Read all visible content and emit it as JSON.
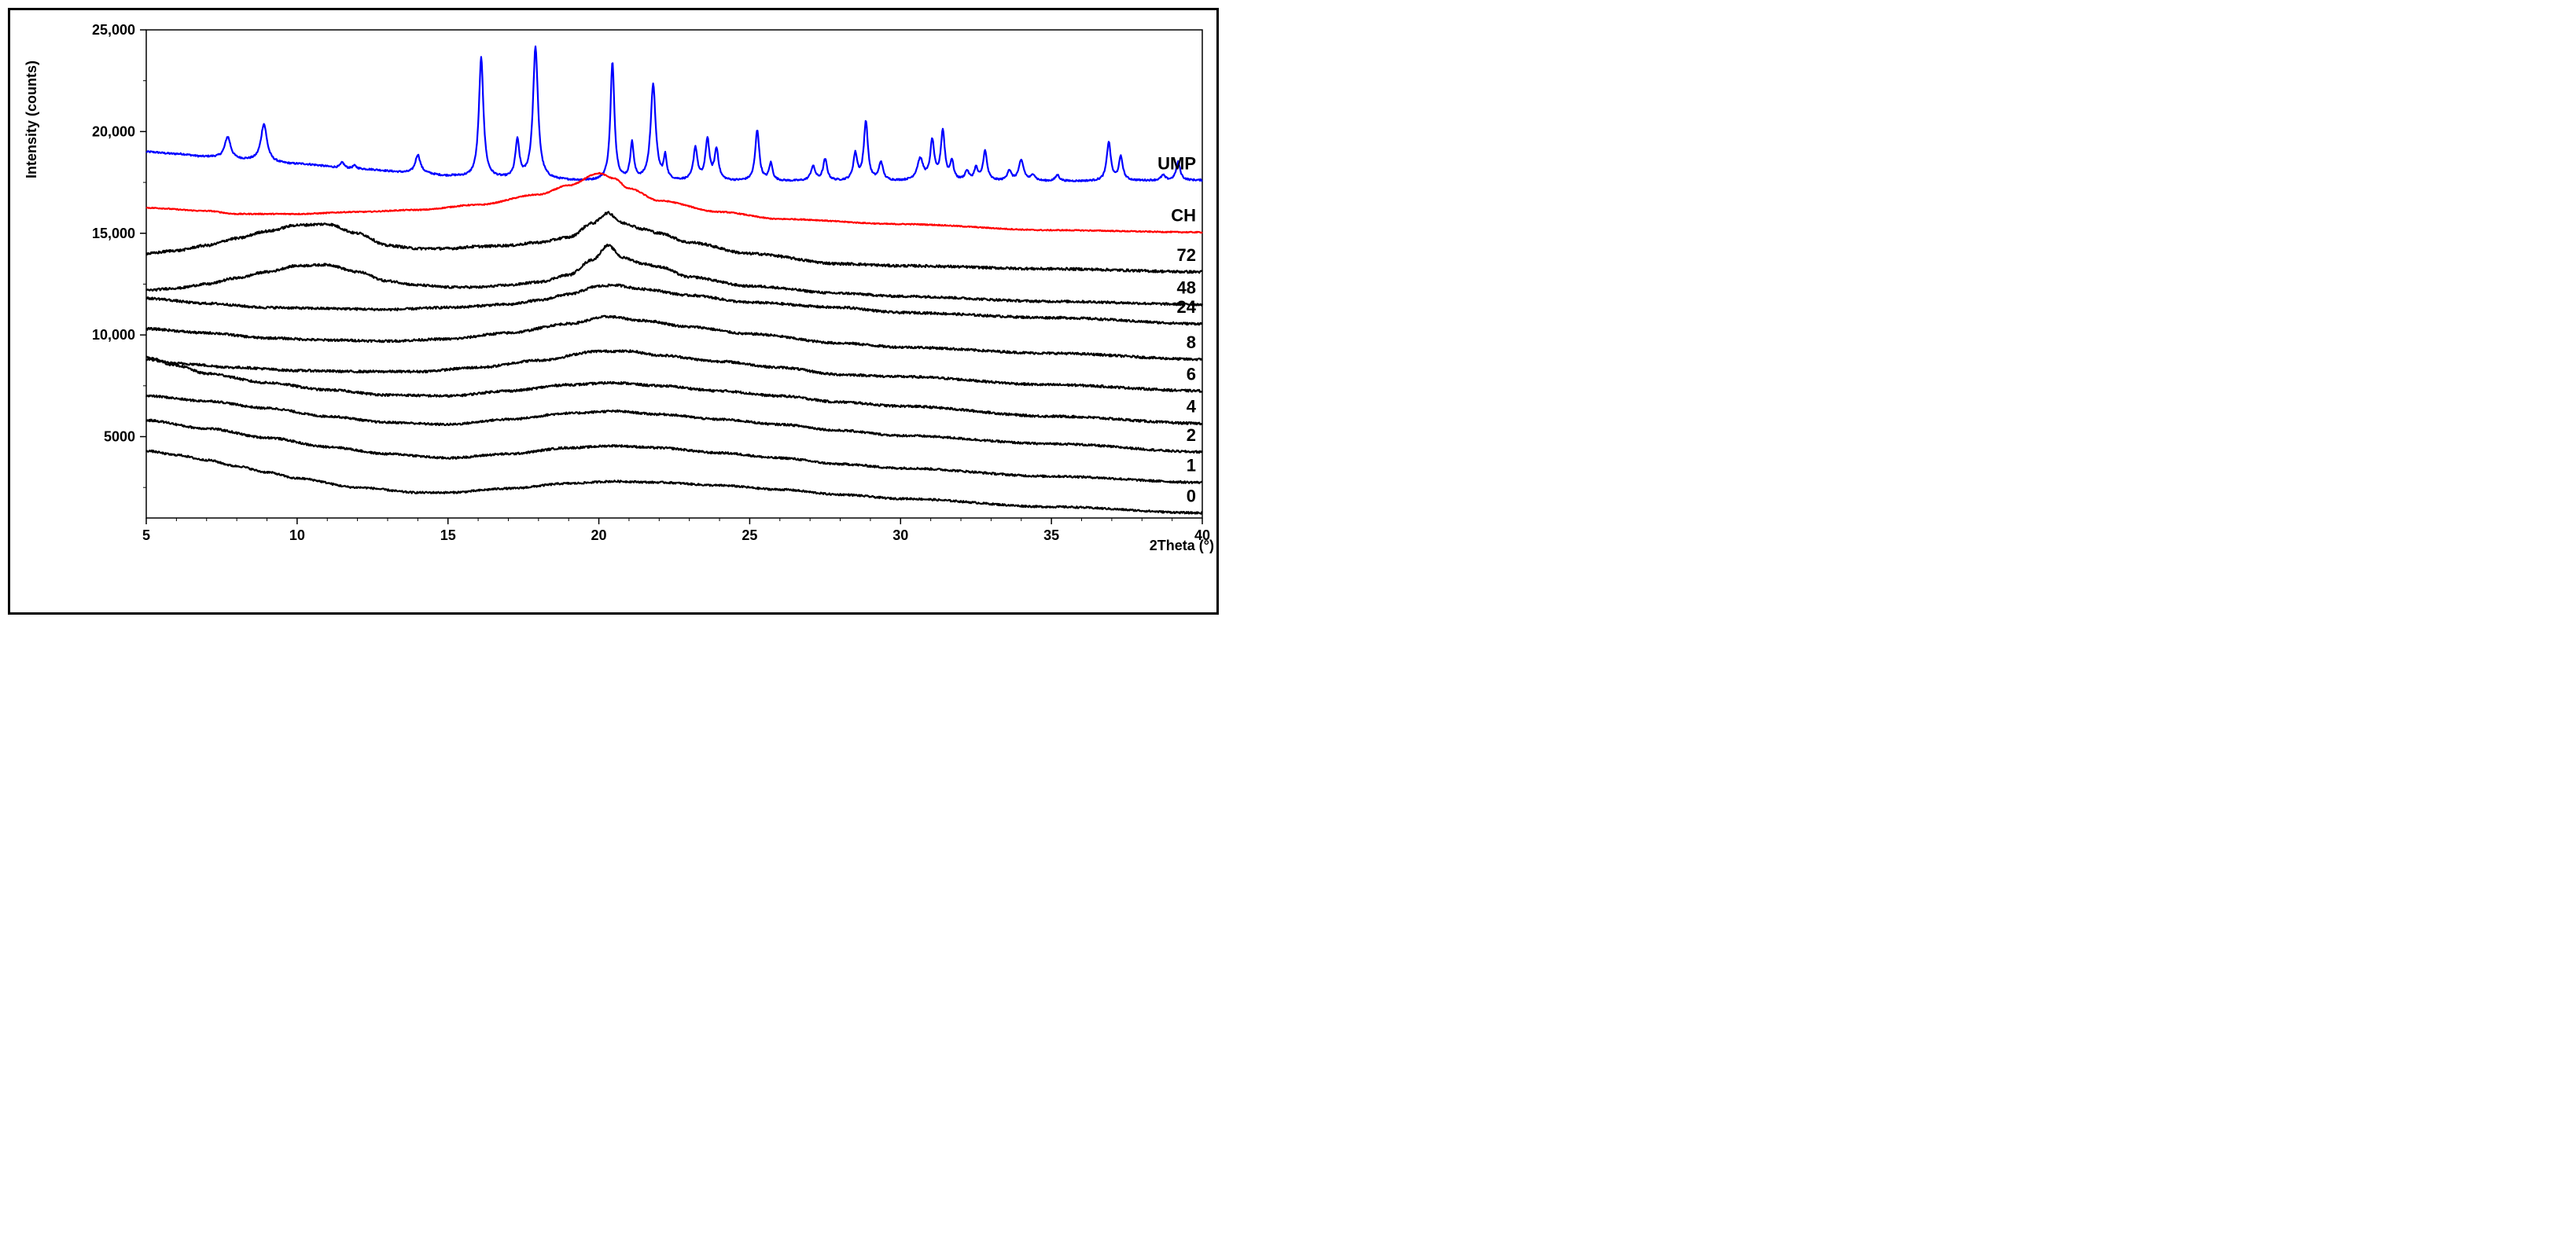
{
  "chart_data": {
    "type": "line",
    "title": "",
    "xlabel": "2Theta (°)",
    "ylabel": "Intensity (counts)",
    "xlim": [
      5,
      40
    ],
    "ylim": [
      1000,
      25000
    ],
    "x_ticks": [
      {
        "value": 5,
        "label": "5"
      },
      {
        "value": 10,
        "label": "10"
      },
      {
        "value": 15,
        "label": "15"
      },
      {
        "value": 20,
        "label": "20"
      },
      {
        "value": 25,
        "label": "25"
      },
      {
        "value": 30,
        "label": "30"
      },
      {
        "value": 35,
        "label": "35"
      },
      {
        "value": 40,
        "label": "40"
      }
    ],
    "y_ticks": [
      {
        "value": 5000,
        "label": "5000"
      },
      {
        "value": 10000,
        "label": "10,000"
      },
      {
        "value": 15000,
        "label": "15,000"
      },
      {
        "value": 20000,
        "label": "20,000"
      },
      {
        "value": 25000,
        "label": "25,000"
      }
    ],
    "grid": false,
    "series": [
      {
        "name": "UMP",
        "color": "#0000ff",
        "baseline": [
          [
            5,
            19000
          ],
          [
            6,
            18900
          ],
          [
            7,
            18750
          ],
          [
            8,
            18600
          ],
          [
            10,
            18400
          ],
          [
            12,
            18150
          ],
          [
            14,
            17950
          ],
          [
            15,
            17800
          ],
          [
            16,
            17700
          ],
          [
            18,
            17600
          ],
          [
            20,
            17550
          ],
          [
            22,
            17550
          ],
          [
            25,
            17550
          ],
          [
            30,
            17550
          ],
          [
            35,
            17550
          ],
          [
            40,
            17600
          ]
        ],
        "peaks": [
          [
            7.7,
            1100,
            0.12
          ],
          [
            8.9,
            1850,
            0.12
          ],
          [
            11.5,
            280,
            0.08
          ],
          [
            11.9,
            160,
            0.08
          ],
          [
            14.0,
            900,
            0.1
          ],
          [
            16.1,
            5900,
            0.09
          ],
          [
            17.3,
            1850,
            0.08
          ],
          [
            17.9,
            6500,
            0.1
          ],
          [
            20.45,
            5800,
            0.08
          ],
          [
            21.1,
            1800,
            0.07
          ],
          [
            21.8,
            4700,
            0.1
          ],
          [
            22.2,
            1100,
            0.06
          ],
          [
            23.2,
            1600,
            0.08
          ],
          [
            23.6,
            2000,
            0.08
          ],
          [
            23.9,
            1500,
            0.08
          ],
          [
            25.25,
            2500,
            0.08
          ],
          [
            25.7,
            850,
            0.07
          ],
          [
            27.1,
            700,
            0.09
          ],
          [
            27.5,
            1050,
            0.08
          ],
          [
            28.5,
            1300,
            0.08
          ],
          [
            28.85,
            2900,
            0.08
          ],
          [
            29.35,
            900,
            0.08
          ],
          [
            30.65,
            1050,
            0.12
          ],
          [
            31.05,
            1900,
            0.08
          ],
          [
            31.4,
            2400,
            0.08
          ],
          [
            31.7,
            900,
            0.07
          ],
          [
            32.2,
            450,
            0.08
          ],
          [
            32.5,
            600,
            0.07
          ],
          [
            32.8,
            1450,
            0.08
          ],
          [
            33.6,
            500,
            0.08
          ],
          [
            34.0,
            1000,
            0.1
          ],
          [
            34.4,
            300,
            0.08
          ],
          [
            35.2,
            300,
            0.08
          ],
          [
            36.9,
            1900,
            0.08
          ],
          [
            37.3,
            1150,
            0.08
          ],
          [
            38.7,
            250,
            0.08
          ],
          [
            39.2,
            900,
            0.08
          ]
        ],
        "noise": 40
      },
      {
        "name": "CH",
        "color": "#ff0000",
        "baseline": [
          [
            5,
            16250
          ],
          [
            7,
            16100
          ],
          [
            8,
            15950
          ],
          [
            10,
            15950
          ],
          [
            12,
            16050
          ],
          [
            14,
            16150
          ],
          [
            16,
            16400
          ],
          [
            18,
            16900
          ],
          [
            19,
            17350
          ],
          [
            20,
            17950
          ],
          [
            20.5,
            17700
          ],
          [
            21,
            17200
          ],
          [
            22,
            16600
          ],
          [
            24,
            16050
          ],
          [
            26,
            15700
          ],
          [
            30,
            15450
          ],
          [
            35,
            15150
          ],
          [
            40,
            15050
          ]
        ],
        "peaks": [],
        "noise": 25
      },
      {
        "name": "72",
        "color": "#000000",
        "baseline": [
          [
            5,
            14000
          ],
          [
            6,
            14150
          ],
          [
            7,
            14400
          ],
          [
            8,
            14750
          ],
          [
            9,
            15100
          ],
          [
            10,
            15400
          ],
          [
            11,
            15450
          ],
          [
            12,
            15000
          ],
          [
            13,
            14400
          ],
          [
            14,
            14250
          ],
          [
            15,
            14250
          ],
          [
            16,
            14350
          ],
          [
            17,
            14400
          ],
          [
            18,
            14550
          ],
          [
            19,
            14800
          ],
          [
            19.8,
            15500
          ],
          [
            20.3,
            16000
          ],
          [
            20.8,
            15500
          ],
          [
            21.5,
            15200
          ],
          [
            22,
            15000
          ],
          [
            23,
            14550
          ],
          [
            25,
            14000
          ],
          [
            28,
            13500
          ],
          [
            30,
            13400
          ],
          [
            35,
            13250
          ],
          [
            40,
            13100
          ]
        ],
        "peaks": [],
        "noise": 60
      },
      {
        "name": "48",
        "color": "#000000",
        "baseline": [
          [
            5,
            12200
          ],
          [
            6,
            12300
          ],
          [
            7,
            12500
          ],
          [
            8,
            12800
          ],
          [
            9,
            13100
          ],
          [
            10,
            13400
          ],
          [
            11,
            13450
          ],
          [
            12,
            13100
          ],
          [
            13,
            12650
          ],
          [
            14,
            12450
          ],
          [
            15,
            12350
          ],
          [
            16,
            12350
          ],
          [
            17,
            12450
          ],
          [
            18,
            12600
          ],
          [
            19,
            12950
          ],
          [
            19.8,
            13700
          ],
          [
            20.3,
            14400
          ],
          [
            20.8,
            13800
          ],
          [
            21.5,
            13500
          ],
          [
            22,
            13350
          ],
          [
            23,
            12850
          ],
          [
            25,
            12400
          ],
          [
            28,
            12050
          ],
          [
            30,
            11900
          ],
          [
            35,
            11650
          ],
          [
            40,
            11500
          ]
        ],
        "peaks": [],
        "noise": 55
      },
      {
        "name": "24",
        "color": "#000000",
        "baseline": [
          [
            5,
            11800
          ],
          [
            7,
            11550
          ],
          [
            9,
            11350
          ],
          [
            11,
            11300
          ],
          [
            13,
            11250
          ],
          [
            15,
            11350
          ],
          [
            17,
            11500
          ],
          [
            18,
            11700
          ],
          [
            19,
            12000
          ],
          [
            20,
            12400
          ],
          [
            20.5,
            12450
          ],
          [
            21.5,
            12250
          ],
          [
            23,
            11950
          ],
          [
            25,
            11600
          ],
          [
            28,
            11350
          ],
          [
            30,
            11100
          ],
          [
            35,
            10850
          ],
          [
            40,
            10550
          ]
        ],
        "peaks": [],
        "noise": 55
      },
      {
        "name": "8",
        "color": "#000000",
        "baseline": [
          [
            5,
            10300
          ],
          [
            7,
            10100
          ],
          [
            9,
            9850
          ],
          [
            11,
            9750
          ],
          [
            13,
            9700
          ],
          [
            15,
            9800
          ],
          [
            17,
            10100
          ],
          [
            19,
            10550
          ],
          [
            20.3,
            10900
          ],
          [
            21.5,
            10700
          ],
          [
            23,
            10400
          ],
          [
            25,
            10050
          ],
          [
            28,
            9600
          ],
          [
            30,
            9400
          ],
          [
            35,
            9100
          ],
          [
            40,
            8800
          ]
        ],
        "peaks": [],
        "noise": 55
      },
      {
        "name": "6",
        "color": "#000000",
        "baseline": [
          [
            5,
            8800
          ],
          [
            6,
            8600
          ],
          [
            8,
            8400
          ],
          [
            10,
            8250
          ],
          [
            12,
            8200
          ],
          [
            14,
            8200
          ],
          [
            16,
            8400
          ],
          [
            18,
            8750
          ],
          [
            20,
            9200
          ],
          [
            21,
            9200
          ],
          [
            22,
            9000
          ],
          [
            24,
            8700
          ],
          [
            26,
            8400
          ],
          [
            28,
            8050
          ],
          [
            30,
            7950
          ],
          [
            35,
            7550
          ],
          [
            40,
            7250
          ]
        ],
        "peaks": [],
        "noise": 55
      },
      {
        "name": "4",
        "color": "#000000",
        "baseline": [
          [
            5,
            8900
          ],
          [
            6,
            8500
          ],
          [
            7,
            8100
          ],
          [
            9,
            7650
          ],
          [
            11,
            7300
          ],
          [
            13,
            7050
          ],
          [
            15,
            7000
          ],
          [
            17,
            7250
          ],
          [
            19,
            7550
          ],
          [
            20.5,
            7650
          ],
          [
            22,
            7500
          ],
          [
            24,
            7250
          ],
          [
            26,
            7000
          ],
          [
            28,
            6700
          ],
          [
            30,
            6500
          ],
          [
            35,
            6000
          ],
          [
            40,
            5650
          ]
        ],
        "peaks": [],
        "noise": 55
      },
      {
        "name": "2",
        "color": "#000000",
        "baseline": [
          [
            5,
            7000
          ],
          [
            7,
            6750
          ],
          [
            9,
            6400
          ],
          [
            11,
            6000
          ],
          [
            13,
            5700
          ],
          [
            15,
            5600
          ],
          [
            17,
            5850
          ],
          [
            19,
            6150
          ],
          [
            20.5,
            6250
          ],
          [
            22,
            6100
          ],
          [
            24,
            5850
          ],
          [
            26,
            5600
          ],
          [
            28,
            5300
          ],
          [
            30,
            5050
          ],
          [
            35,
            4650
          ],
          [
            40,
            4250
          ]
        ],
        "peaks": [],
        "noise": 50
      },
      {
        "name": "1",
        "color": "#000000",
        "baseline": [
          [
            5,
            5800
          ],
          [
            7,
            5400
          ],
          [
            9,
            4950
          ],
          [
            11,
            4500
          ],
          [
            13,
            4150
          ],
          [
            15,
            3950
          ],
          [
            17,
            4150
          ],
          [
            19,
            4450
          ],
          [
            20.5,
            4550
          ],
          [
            22,
            4450
          ],
          [
            24,
            4200
          ],
          [
            26,
            3950
          ],
          [
            28,
            3650
          ],
          [
            30,
            3450
          ],
          [
            35,
            3050
          ],
          [
            40,
            2750
          ]
        ],
        "peaks": [],
        "noise": 50
      },
      {
        "name": "0",
        "color": "#000000",
        "baseline": [
          [
            5,
            4300
          ],
          [
            6,
            4100
          ],
          [
            7,
            3850
          ],
          [
            8,
            3550
          ],
          [
            9,
            3250
          ],
          [
            10,
            2950
          ],
          [
            12,
            2500
          ],
          [
            14,
            2250
          ],
          [
            15,
            2250
          ],
          [
            17,
            2450
          ],
          [
            19,
            2700
          ],
          [
            20.5,
            2800
          ],
          [
            22,
            2750
          ],
          [
            24,
            2600
          ],
          [
            26,
            2400
          ],
          [
            28,
            2150
          ],
          [
            30,
            1950
          ],
          [
            35,
            1550
          ],
          [
            40,
            1250
          ]
        ],
        "peaks": [],
        "noise": 45
      }
    ]
  }
}
